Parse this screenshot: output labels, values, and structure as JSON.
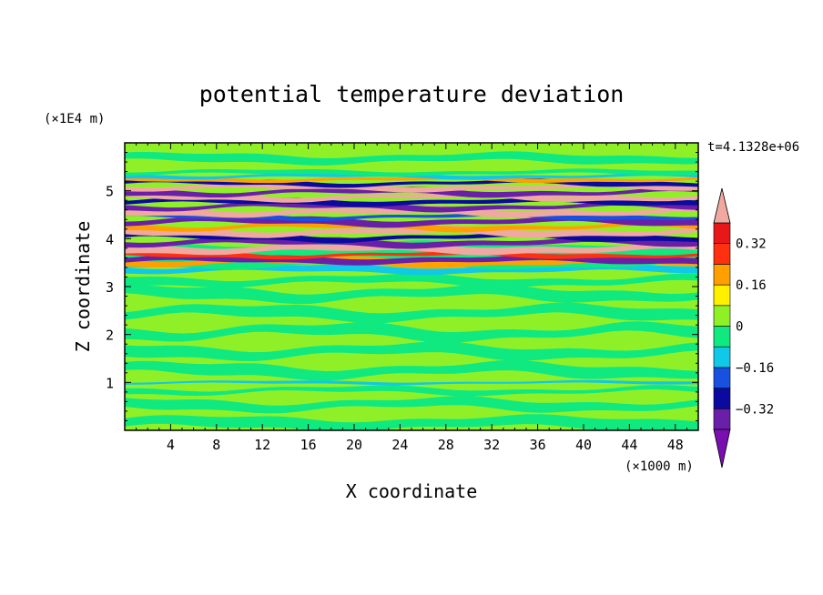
{
  "chart_data": {
    "type": "heatmap",
    "title": "potential temperature deviation",
    "xlabel": "X coordinate",
    "ylabel": "Z coordinate",
    "x_unit": "(×1000 m)",
    "y_unit": "(×1E4 m)",
    "time_label": "t=4.1328e+06",
    "xlim": [
      0,
      50
    ],
    "ylim": [
      0,
      6
    ],
    "x_ticks": [
      "4",
      "8",
      "12",
      "16",
      "20",
      "24",
      "28",
      "32",
      "36",
      "40",
      "44",
      "48"
    ],
    "y_ticks": [
      "1",
      "2",
      "3",
      "4",
      "5"
    ],
    "colorbar": {
      "labels": [
        "0.32",
        "0.16",
        "0",
        "−0.16",
        "−0.32"
      ],
      "levels": [
        -0.4,
        -0.32,
        -0.24,
        -0.16,
        -0.08,
        0,
        0.08,
        0.16,
        0.24,
        0.32,
        0.4
      ],
      "colors": [
        "#7a0fb0",
        "#6a1fa8",
        "#0a0aa0",
        "#1850e0",
        "#10c8e8",
        "#10e880",
        "#90f028",
        "#fff000",
        "#ffa000",
        "#ff3010",
        "#e81818",
        "#f0a8a0"
      ]
    }
  }
}
